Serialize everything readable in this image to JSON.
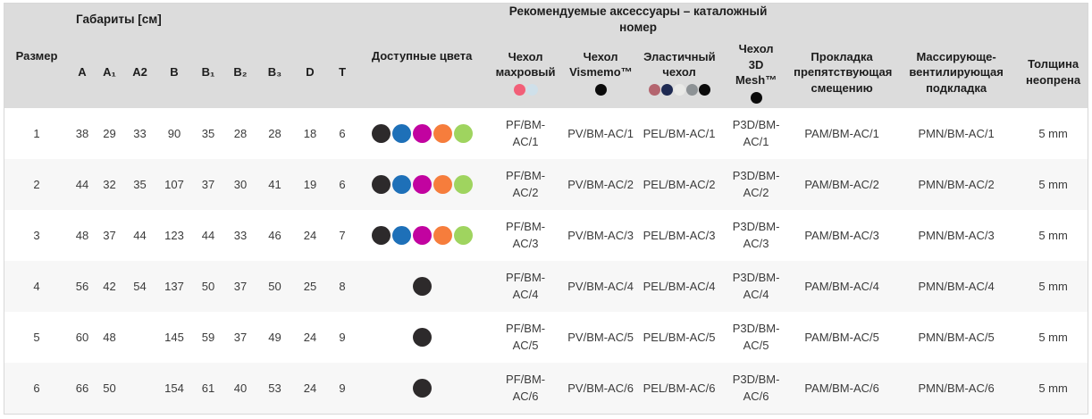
{
  "table": {
    "group_headers": {
      "dimensions": "Габариты [см]",
      "accessories": "Рекомендуемые аксессуары – каталожный номер"
    },
    "columns": {
      "size": "Размер",
      "dims": [
        "A",
        "A₁",
        "A2",
        "B",
        "B₁",
        "B₂",
        "B₃",
        "D",
        "T"
      ],
      "available_colors": "Доступные цвета",
      "cover_terry": "Чехол махровый",
      "cover_vismemo": "Чехол Vismemo™",
      "cover_elastic": "Эластичный чехол",
      "cover_3d_mesh": "Чехол 3D Mesh™",
      "pad_antislip": "Прокладка препятствующая смещению",
      "pad_massage": "Массирующе-вентилирующая подкладка",
      "neoprene_thickness": "Толщина неопрена"
    },
    "header_swatches": {
      "terry": [
        "#f25f78",
        "#cfe0ea"
      ],
      "vismemo": [
        "#0b0b0b"
      ],
      "elastic": [
        "#b4656f",
        "#1e2a52",
        "#e9e9e7",
        "#8d9295",
        "#0b0b0b"
      ],
      "mesh3d": [
        "#0b0b0b"
      ]
    },
    "palette": {
      "black": "#2d2a2b",
      "blue": "#1e70b8",
      "magenta": "#c203a0",
      "orange": "#f67d3c",
      "green": "#9fd45f"
    },
    "rows": [
      {
        "size": "1",
        "dims": [
          "38",
          "29",
          "33",
          "90",
          "35",
          "28",
          "28",
          "18",
          "6"
        ],
        "colors": [
          "black",
          "blue",
          "magenta",
          "orange",
          "green"
        ],
        "cover_terry": "PF/BM-AC/1",
        "cover_vismemo": "PV/BM-AC/1",
        "cover_elastic": "PEL/BM-AC/1",
        "cover_3d_mesh": "P3D/BM-AC/1",
        "pad_antislip": "PAM/BM-AC/1",
        "pad_massage": "PMN/BM-AC/1",
        "neoprene_thickness": "5 mm"
      },
      {
        "size": "2",
        "dims": [
          "44",
          "32",
          "35",
          "107",
          "37",
          "30",
          "41",
          "19",
          "6"
        ],
        "colors": [
          "black",
          "blue",
          "magenta",
          "orange",
          "green"
        ],
        "cover_terry": "PF/BM-AC/2",
        "cover_vismemo": "PV/BM-AC/2",
        "cover_elastic": "PEL/BM-AC/2",
        "cover_3d_mesh": "P3D/BM-AC/2",
        "pad_antislip": "PAM/BM-AC/2",
        "pad_massage": "PMN/BM-AC/2",
        "neoprene_thickness": "5 mm"
      },
      {
        "size": "3",
        "dims": [
          "48",
          "37",
          "44",
          "123",
          "44",
          "33",
          "46",
          "24",
          "7"
        ],
        "colors": [
          "black",
          "blue",
          "magenta",
          "orange",
          "green"
        ],
        "cover_terry": "PF/BM-AC/3",
        "cover_vismemo": "PV/BM-AC/3",
        "cover_elastic": "PEL/BM-AC/3",
        "cover_3d_mesh": "P3D/BM-AC/3",
        "pad_antislip": "PAM/BM-AC/3",
        "pad_massage": "PMN/BM-AC/3",
        "neoprene_thickness": "5 mm"
      },
      {
        "size": "4",
        "dims": [
          "56",
          "42",
          "54",
          "137",
          "50",
          "37",
          "50",
          "25",
          "8"
        ],
        "colors": [
          "black"
        ],
        "cover_terry": "PF/BM-AC/4",
        "cover_vismemo": "PV/BM-AC/4",
        "cover_elastic": "PEL/BM-AC/4",
        "cover_3d_mesh": "P3D/BM-AC/4",
        "pad_antislip": "PAM/BM-AC/4",
        "pad_massage": "PMN/BM-AC/4",
        "neoprene_thickness": "5 mm"
      },
      {
        "size": "5",
        "dims": [
          "60",
          "48",
          "",
          "145",
          "59",
          "37",
          "49",
          "24",
          "9"
        ],
        "colors": [
          "black"
        ],
        "cover_terry": "PF/BM-AC/5",
        "cover_vismemo": "PV/BM-AC/5",
        "cover_elastic": "PEL/BM-AC/5",
        "cover_3d_mesh": "P3D/BM-AC/5",
        "pad_antislip": "PAM/BM-AC/5",
        "pad_massage": "PMN/BM-AC/5",
        "neoprene_thickness": "5 mm"
      },
      {
        "size": "6",
        "dims": [
          "66",
          "50",
          "",
          "154",
          "61",
          "40",
          "53",
          "24",
          "9"
        ],
        "colors": [
          "black"
        ],
        "cover_terry": "PF/BM-AC/6",
        "cover_vismemo": "PV/BM-AC/6",
        "cover_elastic": "PEL/BM-AC/6",
        "cover_3d_mesh": "P3D/BM-AC/6",
        "pad_antislip": "PAM/BM-AC/6",
        "pad_massage": "PMN/BM-AC/6",
        "neoprene_thickness": "5 mm"
      }
    ]
  }
}
